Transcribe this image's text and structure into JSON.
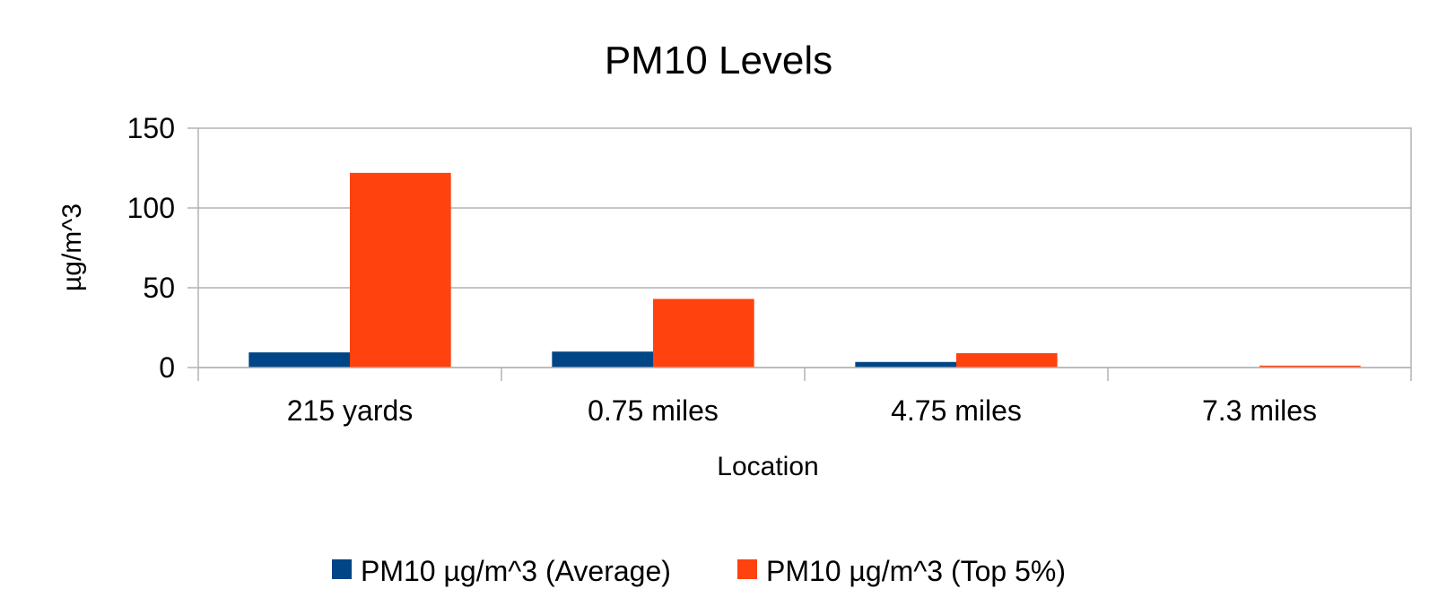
{
  "chart_data": {
    "type": "bar",
    "title": "PM10 Levels",
    "xlabel": "Location",
    "ylabel": "µg/m^3",
    "categories": [
      "215 yards",
      "0.75 miles",
      "4.75 miles",
      "7.3 miles"
    ],
    "series": [
      {
        "name": "PM10 µg/m^3 (Average)",
        "values": [
          9.5,
          10,
          3.5,
          0.3
        ],
        "color": "#004586"
      },
      {
        "name": "PM10 µg/m^3 (Top 5%)",
        "values": [
          122,
          43,
          9,
          1.2
        ],
        "color": "#ff420e"
      }
    ],
    "ylim": [
      0,
      150
    ],
    "yticks": [
      0,
      50,
      100,
      150
    ],
    "grid": true,
    "legend": "bottom"
  }
}
